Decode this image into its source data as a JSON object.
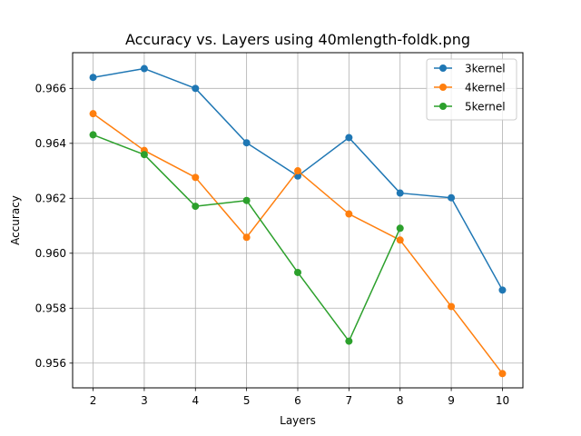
{
  "chart_data": {
    "type": "line",
    "title": "Accuracy vs. Layers using 40mlength-foldk.png",
    "xlabel": "Layers",
    "ylabel": "Accuracy",
    "x": [
      2,
      3,
      4,
      5,
      6,
      7,
      8,
      9,
      10
    ],
    "xlim": [
      1.6,
      10.4
    ],
    "ylim": [
      0.9551,
      0.9673
    ],
    "xticks": [
      2,
      3,
      4,
      5,
      6,
      7,
      8,
      9,
      10
    ],
    "yticks": [
      0.956,
      0.958,
      0.96,
      0.962,
      0.964,
      0.966
    ],
    "ytick_labels": [
      "0.956",
      "0.958",
      "0.960",
      "0.962",
      "0.964",
      "0.966"
    ],
    "grid": true,
    "legend_position": "top-right",
    "series": [
      {
        "name": "3kernel",
        "color": "#1f77b4",
        "x": [
          2,
          3,
          4,
          5,
          6,
          7,
          8,
          9,
          10
        ],
        "values": [
          0.9664,
          0.96672,
          0.966,
          0.96402,
          0.96281,
          0.96421,
          0.96219,
          0.96202,
          0.95866
        ]
      },
      {
        "name": "4kernel",
        "color": "#ff7f0e",
        "x": [
          2,
          3,
          4,
          5,
          6,
          7,
          8,
          9,
          10
        ],
        "values": [
          0.96508,
          0.96374,
          0.96276,
          0.96058,
          0.963,
          0.96143,
          0.96048,
          0.95806,
          0.95562
        ]
      },
      {
        "name": "5kernel",
        "color": "#2ca02c",
        "x": [
          2,
          3,
          4,
          5,
          6,
          7,
          8
        ],
        "values": [
          0.96431,
          0.96359,
          0.96171,
          0.96192,
          0.9593,
          0.9568,
          0.96091
        ]
      }
    ]
  }
}
